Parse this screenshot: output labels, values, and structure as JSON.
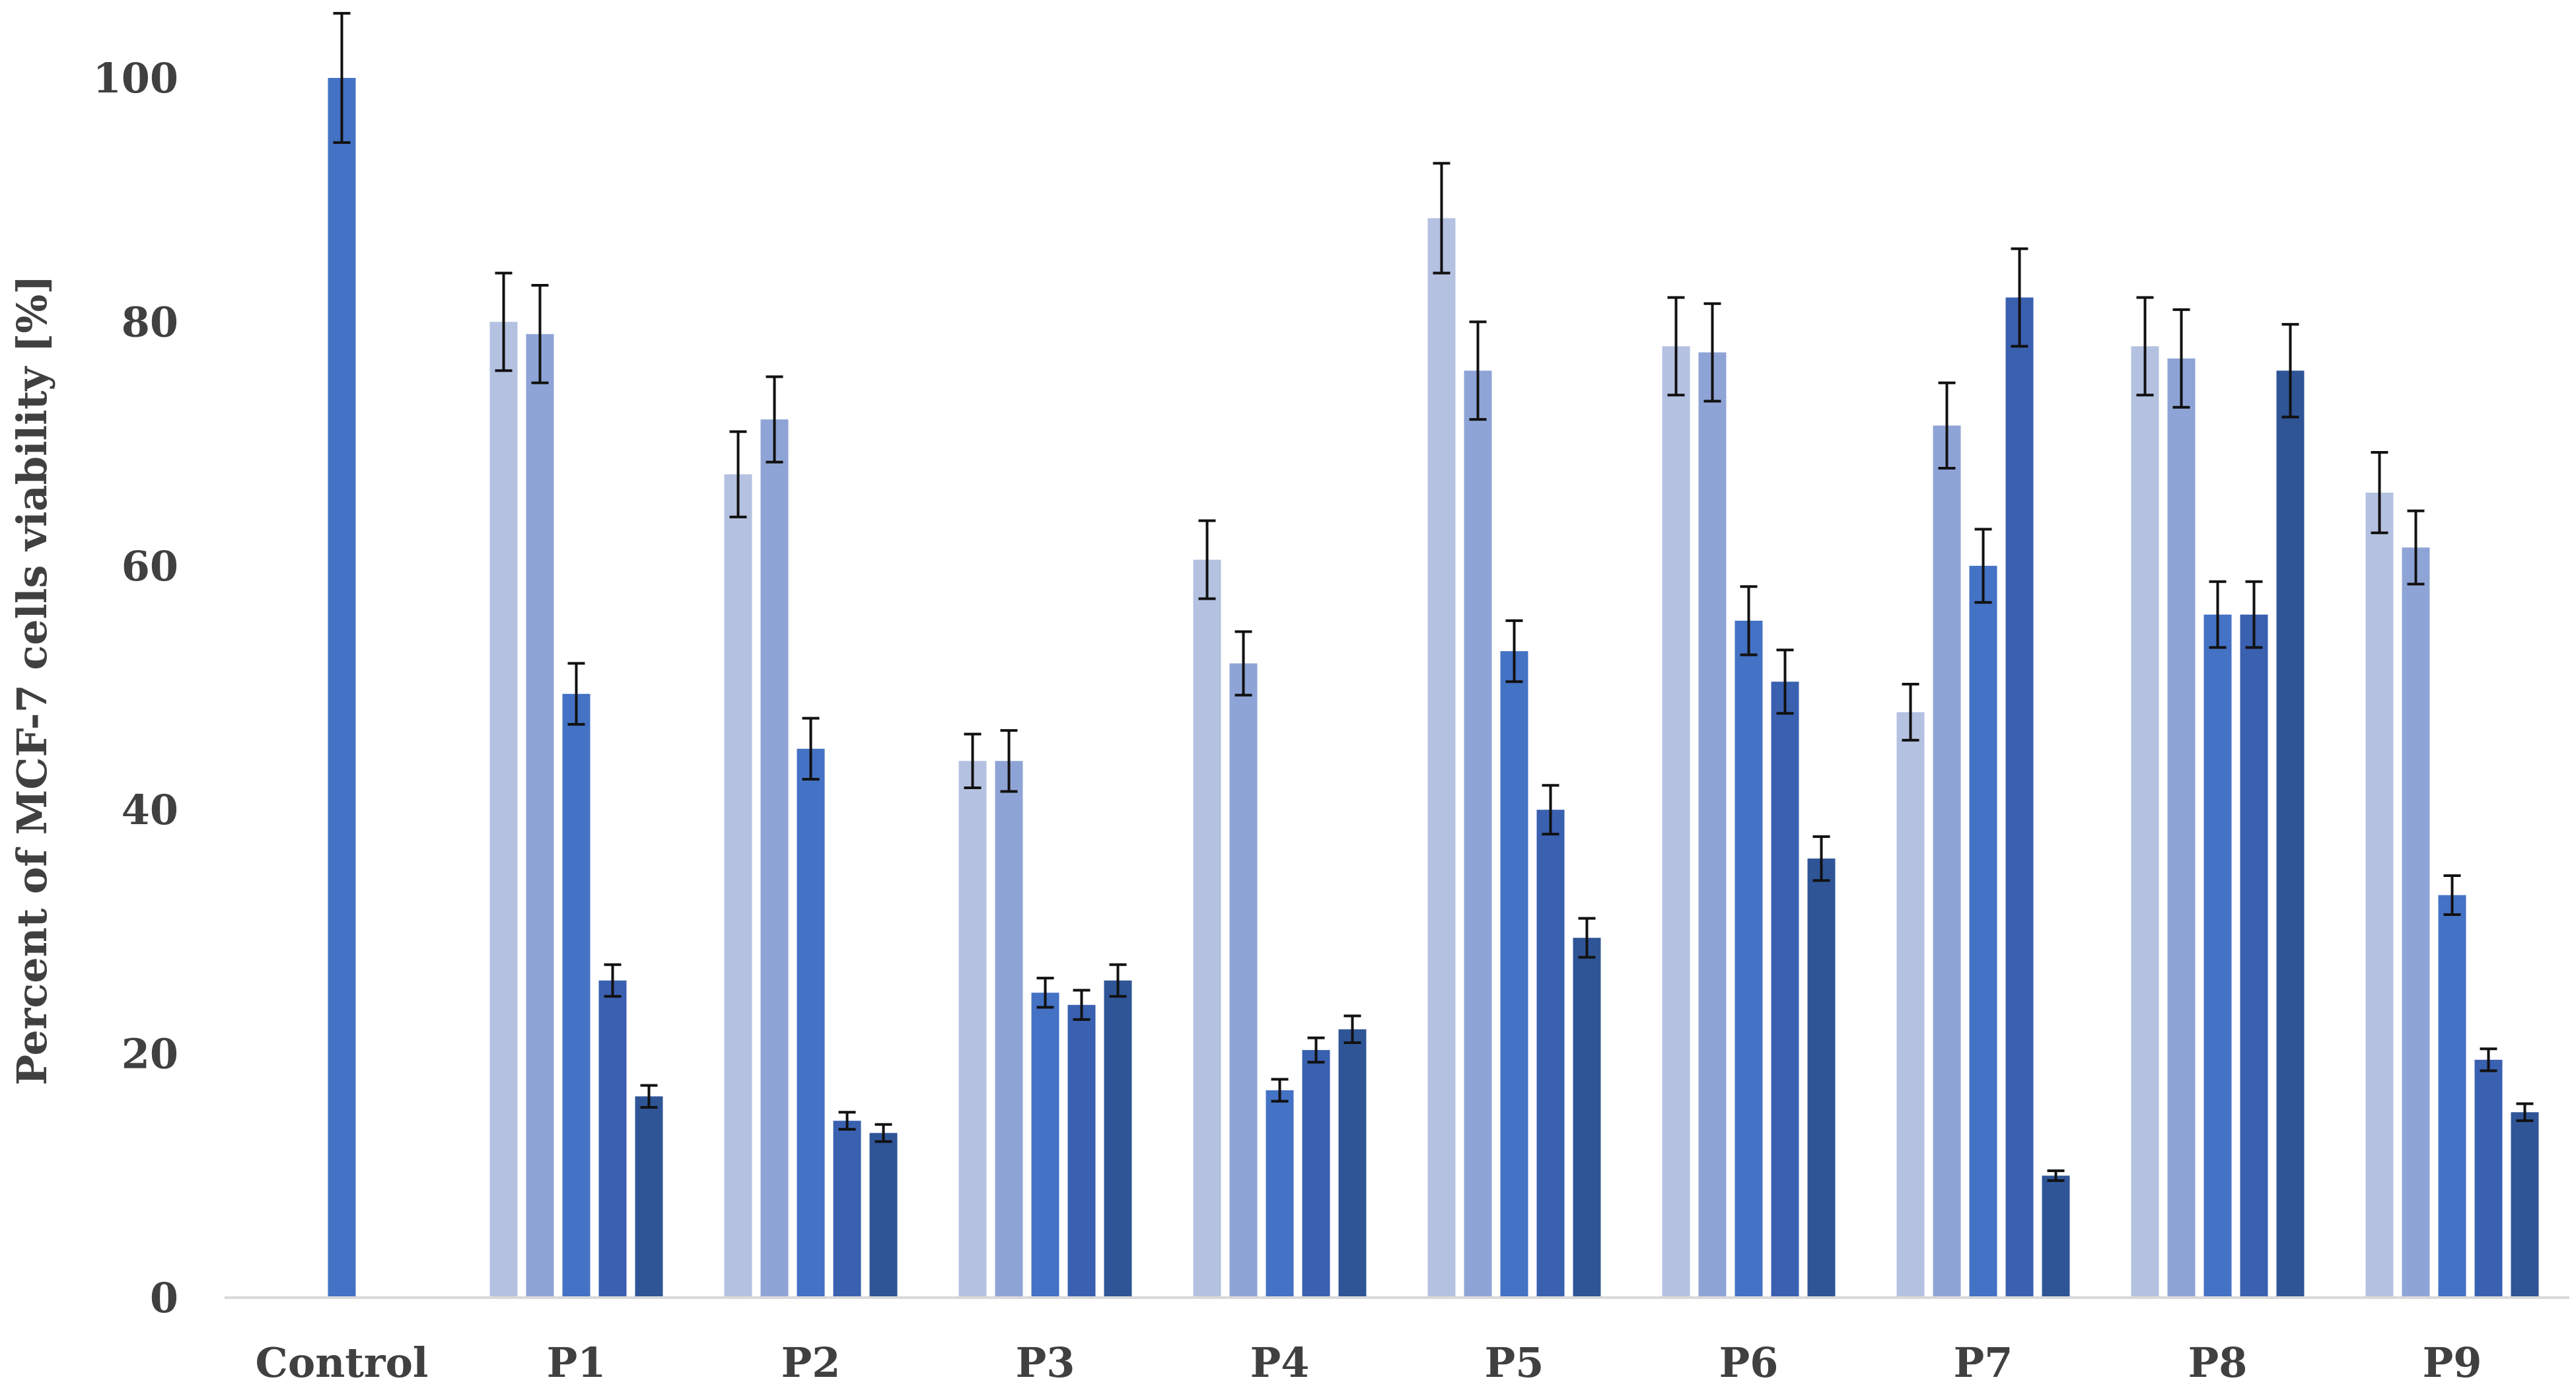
{
  "chart_data": {
    "type": "bar",
    "title": "",
    "xlabel": "",
    "ylabel": "Percent of MCF-7 cells viability [%]",
    "ylim": [
      0,
      100
    ],
    "yticks": [
      0,
      20,
      40,
      60,
      80,
      100
    ],
    "grid": false,
    "legend": "none",
    "categories": [
      "Control",
      "P1",
      "P2",
      "P3",
      "P4",
      "P5",
      "P6",
      "P7",
      "P8",
      "P9"
    ],
    "series": [
      {
        "color": "#b4c1e1",
        "values": [
          null,
          80,
          67.5,
          44,
          60.5,
          88.5,
          78,
          48,
          78,
          66
        ],
        "errors": [
          null,
          4,
          3.5,
          2.2,
          3.2,
          4.5,
          4,
          2.3,
          4,
          3.3
        ]
      },
      {
        "color": "#8fa4d6",
        "values": [
          null,
          79,
          72,
          44,
          52,
          76,
          77.5,
          71.5,
          77,
          61.5
        ],
        "errors": [
          null,
          4,
          3.5,
          2.5,
          2.6,
          4,
          4,
          3.5,
          4,
          3
        ]
      },
      {
        "color": "#4472c4",
        "values": [
          100,
          49.5,
          45,
          25,
          17,
          53,
          55.5,
          60,
          56,
          33
        ],
        "errors": [
          5.3,
          2.5,
          2.5,
          1.2,
          0.9,
          2.5,
          2.8,
          3,
          2.7,
          1.6
        ]
      },
      {
        "color": "#3a60b0",
        "values": [
          null,
          26,
          14.5,
          24,
          20.3,
          40,
          50.5,
          82,
          56,
          19.5
        ],
        "errors": [
          null,
          1.3,
          0.7,
          1.2,
          1,
          2,
          2.6,
          4,
          2.7,
          0.9
        ]
      },
      {
        "color": "#2f5597",
        "values": [
          null,
          16.5,
          13.5,
          26,
          22,
          29.5,
          36,
          10,
          76,
          15.2
        ],
        "errors": [
          null,
          0.9,
          0.7,
          1.3,
          1.1,
          1.6,
          1.8,
          0.4,
          3.8,
          0.7
        ]
      }
    ]
  }
}
